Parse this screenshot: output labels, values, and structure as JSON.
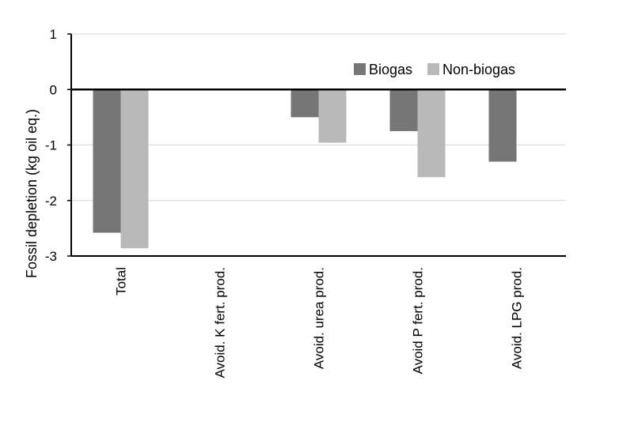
{
  "chart_data": {
    "type": "bar",
    "title": "",
    "xlabel": "",
    "ylabel": "Fossil depletion (kg oil eq.)",
    "ylim": [
      -3,
      1
    ],
    "yticks": [
      1,
      0,
      -1,
      -2,
      -3
    ],
    "grid": true,
    "legend_position": "top-right",
    "categories": [
      "Total",
      "Avoid. K fert. prod.",
      "Avoid. urea prod.",
      "Avoid P fert. prod.",
      "Avoid. LPG prod."
    ],
    "series": [
      {
        "name": "Biogas",
        "color": "#767676",
        "values": [
          -2.58,
          -0.01,
          -0.5,
          -0.75,
          -1.3
        ]
      },
      {
        "name": "Non-biogas",
        "color": "#b9b9b9",
        "values": [
          -2.86,
          0,
          -0.96,
          -1.58,
          0
        ]
      }
    ]
  }
}
